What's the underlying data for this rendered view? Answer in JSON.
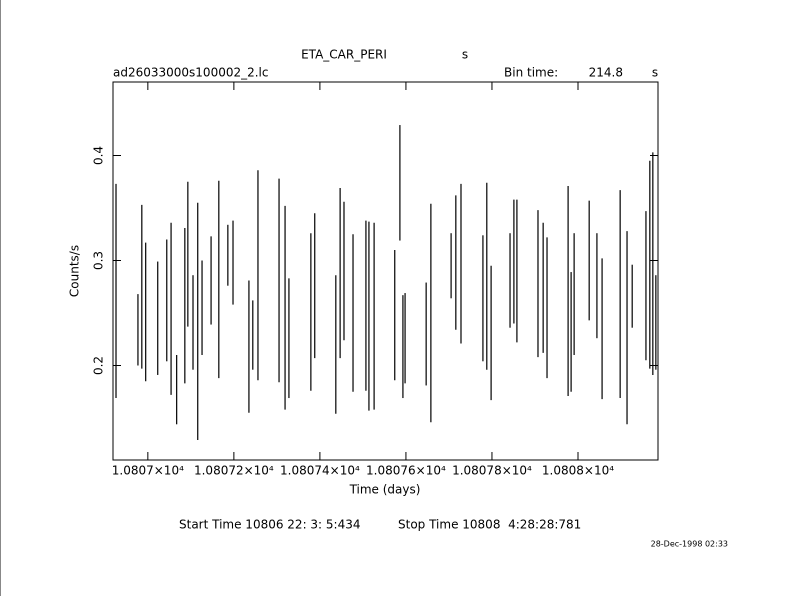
{
  "chart_data": {
    "type": "errorbar",
    "title": "ETA_CAR_PERI",
    "title_suffix": "s",
    "file_name": "ad26033000s100002_2.lc",
    "bin_time_label": "Bin time:",
    "bin_time": 214.8,
    "bin_time_unit": "s",
    "xlabel": "Time (days)",
    "ylabel": "Counts/s",
    "start_time": "Start Time 10806 22: 3: 5:434",
    "stop_time": "Stop Time 10808  4:28:28:781",
    "date_stamp": "28-Dec-1998 02:33",
    "color": "#000000",
    "xlim": [
      10806.919,
      10808.186
    ],
    "xticks": [
      {
        "value": 10807,
        "label": "1.0807×10⁴"
      },
      {
        "value": 10807.2,
        "label": "1.08072×10⁴"
      },
      {
        "value": 10807.4,
        "label": "1.08074×10⁴"
      },
      {
        "value": 10807.6,
        "label": "1.08076×10⁴"
      },
      {
        "value": 10807.8,
        "label": "1.08078×10⁴"
      },
      {
        "value": 10808,
        "label": "1.0808×10⁴"
      }
    ],
    "ylim": [
      0.11,
      0.47
    ],
    "yticks": [
      0.2,
      0.3,
      0.4
    ],
    "x": [
      10806.926,
      10806.977,
      10806.986,
      10806.995,
      10807.023,
      10807.044,
      10807.054,
      10807.067,
      10807.086,
      10807.093,
      10807.105,
      10807.116,
      10807.126,
      10807.147,
      10807.165,
      10807.186,
      10807.198,
      10807.235,
      10807.244,
      10807.256,
      10807.305,
      10807.319,
      10807.328,
      10807.379,
      10807.388,
      10807.437,
      10807.447,
      10807.456,
      10807.477,
      10807.507,
      10807.514,
      10807.526,
      10807.574,
      10807.586,
      10807.593,
      10807.598,
      10807.647,
      10807.658,
      10807.705,
      10807.716,
      10807.728,
      10807.779,
      10807.788,
      10807.798,
      10807.842,
      10807.851,
      10807.858,
      10807.907,
      10807.919,
      10807.928,
      10807.977,
      10807.984,
      10807.991,
      10808.026,
      10808.044,
      10808.056,
      10808.098,
      10808.114,
      10808.126,
      10808.158,
      10808.167,
      10808.174,
      10808.181
    ],
    "values": [
      0.271,
      0.234,
      0.275,
      0.251,
      0.245,
      0.262,
      0.254,
      0.177,
      0.257,
      0.306,
      0.241,
      0.242,
      0.255,
      0.281,
      0.282,
      0.305,
      0.298,
      0.218,
      0.229,
      0.286,
      0.281,
      0.255,
      0.226,
      0.251,
      0.276,
      0.22,
      0.288,
      0.29,
      0.25,
      0.257,
      0.247,
      0.247,
      0.248,
      0.374,
      0.218,
      0.226,
      0.23,
      0.25,
      0.295,
      0.298,
      0.297,
      0.264,
      0.285,
      0.231,
      0.281,
      0.299,
      0.29,
      0.278,
      0.274,
      0.255,
      0.271,
      0.232,
      0.268,
      0.3,
      0.276,
      0.235,
      0.268,
      0.236,
      0.266,
      0.276,
      0.296,
      0.297,
      0.241
    ],
    "errors": [
      0.102,
      0.034,
      0.078,
      0.066,
      0.054,
      0.058,
      0.082,
      0.033,
      0.074,
      0.069,
      0.045,
      0.113,
      0.045,
      0.042,
      0.094,
      0.029,
      0.04,
      0.063,
      0.033,
      0.1,
      0.097,
      0.097,
      0.057,
      0.075,
      0.069,
      0.066,
      0.081,
      0.066,
      0.075,
      0.081,
      0.09,
      0.089,
      0.062,
      0.055,
      0.049,
      0.043,
      0.049,
      0.104,
      0.031,
      0.064,
      0.076,
      0.06,
      0.089,
      0.064,
      0.045,
      0.059,
      0.068,
      0.07,
      0.062,
      0.067,
      0.1,
      0.057,
      0.058,
      0.057,
      0.05,
      0.067,
      0.099,
      0.092,
      0.03,
      0.071,
      0.099,
      0.106,
      0.045
    ]
  }
}
